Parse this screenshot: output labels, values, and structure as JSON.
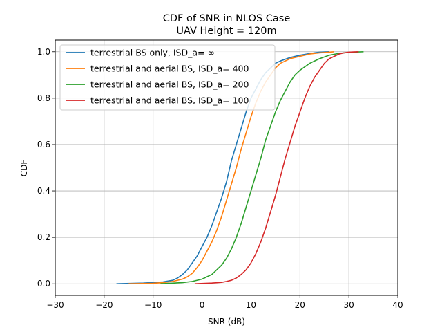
{
  "chart_data": {
    "type": "line",
    "title": [
      "CDF of SNR in NLOS Case",
      "UAV Height = 120m"
    ],
    "xlabel": "SNR (dB)",
    "ylabel": "CDF",
    "xlim": [
      -30,
      40
    ],
    "ylim": [
      -0.05,
      1.05
    ],
    "xticks": [
      -30,
      -20,
      -10,
      0,
      10,
      20,
      30,
      40
    ],
    "xtick_labels": [
      "−30",
      "−20",
      "−10",
      "0",
      "10",
      "20",
      "30",
      "40"
    ],
    "yticks": [
      0.0,
      0.2,
      0.4,
      0.6,
      0.8,
      1.0
    ],
    "ytick_labels": [
      "0.0",
      "0.2",
      "0.4",
      "0.6",
      "0.8",
      "1.0"
    ],
    "grid": true,
    "legend_position": "upper-left",
    "series": [
      {
        "name": "terrestrial BS only, ISD_a= ∞",
        "color": "#1f77b4",
        "x": [
          -17.5,
          -12,
          -8,
          -6,
          -5,
          -4,
          -3,
          -2,
          -1,
          0,
          1,
          2,
          3,
          4,
          5,
          6,
          7,
          8,
          9,
          10,
          11,
          12,
          13,
          14,
          15,
          16,
          18,
          20,
          22,
          24,
          26
        ],
        "y": [
          0.0,
          0.003,
          0.008,
          0.015,
          0.025,
          0.04,
          0.06,
          0.09,
          0.12,
          0.16,
          0.2,
          0.25,
          0.31,
          0.37,
          0.44,
          0.53,
          0.6,
          0.67,
          0.74,
          0.8,
          0.84,
          0.88,
          0.91,
          0.93,
          0.95,
          0.96,
          0.975,
          0.985,
          0.992,
          0.998,
          1.0
        ]
      },
      {
        "name": "terrestrial and aerial BS,  ISD_a= 400",
        "color": "#ff7f0e",
        "x": [
          -15,
          -10,
          -8,
          -6,
          -4,
          -3,
          -2,
          -1,
          0,
          1,
          2,
          3,
          4,
          5,
          6,
          7,
          8,
          9,
          10,
          11,
          12,
          13,
          14,
          15,
          16,
          18,
          20,
          22,
          24,
          26,
          27
        ],
        "y": [
          0.0,
          0.002,
          0.005,
          0.01,
          0.02,
          0.03,
          0.045,
          0.07,
          0.1,
          0.14,
          0.18,
          0.23,
          0.29,
          0.36,
          0.43,
          0.5,
          0.58,
          0.65,
          0.72,
          0.78,
          0.83,
          0.87,
          0.9,
          0.93,
          0.95,
          0.97,
          0.98,
          0.99,
          0.995,
          0.998,
          1.0
        ]
      },
      {
        "name": "terrestrial and aerial BS,  ISD_a= 200",
        "color": "#2ca02c",
        "x": [
          -8.5,
          -4,
          -2,
          0,
          1,
          2,
          3,
          4,
          5,
          6,
          7,
          8,
          9,
          10,
          11,
          12,
          13,
          14,
          15,
          16,
          17,
          18,
          19,
          20,
          22,
          24,
          26,
          28,
          30,
          32,
          33
        ],
        "y": [
          0.0,
          0.005,
          0.01,
          0.02,
          0.03,
          0.04,
          0.06,
          0.08,
          0.11,
          0.15,
          0.2,
          0.26,
          0.33,
          0.4,
          0.47,
          0.54,
          0.62,
          0.68,
          0.74,
          0.79,
          0.83,
          0.87,
          0.9,
          0.92,
          0.95,
          0.97,
          0.985,
          0.993,
          0.997,
          0.999,
          1.0
        ]
      },
      {
        "name": "terrestrial and aerial BS,  ISD_a= 100",
        "color": "#d62728",
        "x": [
          -1.5,
          2,
          4,
          5,
          6,
          7,
          8,
          9,
          10,
          11,
          12,
          13,
          14,
          15,
          16,
          17,
          18,
          19,
          20,
          21,
          22,
          23,
          24,
          25,
          26,
          27,
          28,
          29,
          30,
          31,
          32
        ],
        "y": [
          0.0,
          0.003,
          0.006,
          0.01,
          0.015,
          0.025,
          0.04,
          0.06,
          0.09,
          0.13,
          0.18,
          0.24,
          0.31,
          0.38,
          0.46,
          0.54,
          0.61,
          0.68,
          0.74,
          0.8,
          0.85,
          0.89,
          0.92,
          0.95,
          0.97,
          0.98,
          0.99,
          0.995,
          0.998,
          0.999,
          1.0
        ]
      }
    ]
  }
}
